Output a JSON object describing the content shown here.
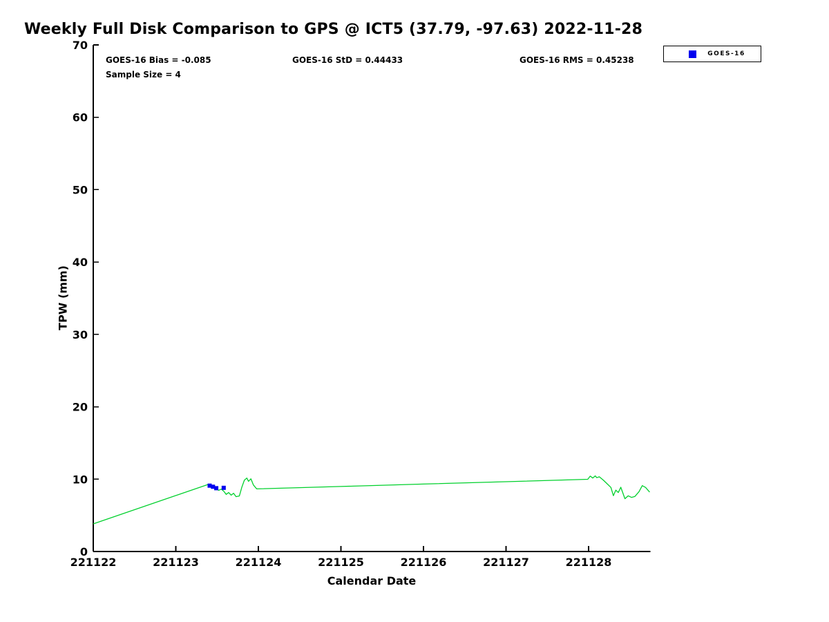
{
  "title": "Weekly Full Disk Comparison to GPS @ ICT5 (37.79, -97.63) 2022-11-28",
  "stats": {
    "bias": "GOES-16 Bias = -0.085",
    "std": "GOES-16 StD = 0.44433",
    "rms": "GOES-16 RMS = 0.45238",
    "sample_size": "Sample Size = 4"
  },
  "legend": {
    "position": "top-right",
    "entries": [
      {
        "label": "GOES-16",
        "marker": "square",
        "color": "#0000ee"
      }
    ]
  },
  "chart_data": {
    "type": "line",
    "title": "Weekly Full Disk Comparison to GPS @ ICT5 (37.79, -97.63) 2022-11-28",
    "xlabel": "Calendar Date",
    "ylabel": "TPW (mm)",
    "ylim": [
      0,
      70
    ],
    "yticks": [
      0,
      10,
      20,
      30,
      40,
      50,
      60,
      70
    ],
    "xtick_labels": [
      "221122",
      "221123",
      "221124",
      "221125",
      "221126",
      "221127",
      "221128"
    ],
    "xtick_offsets": [
      0,
      1,
      2,
      3,
      4,
      5,
      6
    ],
    "xlim_offsets": [
      0,
      6.75
    ],
    "grid": false,
    "legend_position": "top-right",
    "series": [
      {
        "name": "",
        "type": "line",
        "color": "#00d02c",
        "points": [
          [
            0.0,
            3.82
          ],
          [
            1.4,
            9.3
          ],
          [
            1.44,
            9.05
          ],
          [
            1.48,
            8.7
          ],
          [
            1.52,
            8.45
          ],
          [
            1.55,
            8.62
          ],
          [
            1.58,
            8.35
          ],
          [
            1.61,
            7.9
          ],
          [
            1.64,
            8.15
          ],
          [
            1.67,
            7.78
          ],
          [
            1.7,
            8.05
          ],
          [
            1.73,
            7.58
          ],
          [
            1.77,
            7.68
          ],
          [
            1.8,
            8.9
          ],
          [
            1.83,
            9.85
          ],
          [
            1.86,
            10.15
          ],
          [
            1.88,
            9.7
          ],
          [
            1.91,
            10.05
          ],
          [
            1.94,
            9.2
          ],
          [
            1.98,
            8.65
          ],
          [
            3.0,
            8.99
          ],
          [
            4.0,
            9.32
          ],
          [
            5.0,
            9.65
          ],
          [
            5.99,
            9.98
          ],
          [
            6.02,
            10.42
          ],
          [
            6.05,
            10.15
          ],
          [
            6.08,
            10.45
          ],
          [
            6.1,
            10.2
          ],
          [
            6.13,
            10.32
          ],
          [
            6.18,
            9.85
          ],
          [
            6.23,
            9.3
          ],
          [
            6.27,
            8.85
          ],
          [
            6.3,
            7.72
          ],
          [
            6.33,
            8.48
          ],
          [
            6.36,
            8.15
          ],
          [
            6.39,
            8.88
          ],
          [
            6.44,
            7.3
          ],
          [
            6.48,
            7.7
          ],
          [
            6.52,
            7.48
          ],
          [
            6.56,
            7.6
          ],
          [
            6.61,
            8.25
          ],
          [
            6.65,
            9.1
          ],
          [
            6.69,
            8.85
          ],
          [
            6.74,
            8.2
          ]
        ]
      },
      {
        "name": "GOES-16",
        "type": "scatter",
        "marker": "square",
        "color": "#0000ee",
        "points": [
          [
            1.41,
            9.1
          ],
          [
            1.45,
            8.95
          ],
          [
            1.49,
            8.75
          ],
          [
            1.58,
            8.8
          ]
        ]
      }
    ]
  }
}
